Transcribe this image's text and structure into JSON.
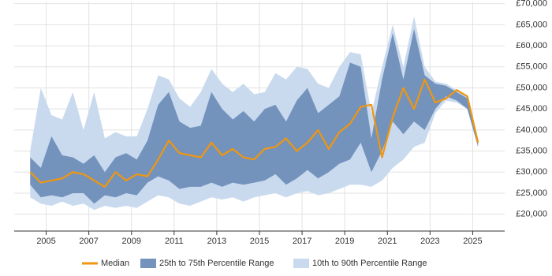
{
  "chart_data": {
    "type": "range-line",
    "x": [
      2004.25,
      2004.75,
      2005.25,
      2005.75,
      2006.25,
      2006.75,
      2007.25,
      2007.75,
      2008.25,
      2008.75,
      2009.25,
      2009.75,
      2010.25,
      2010.75,
      2011.25,
      2011.75,
      2012.25,
      2012.75,
      2013.25,
      2013.75,
      2014.25,
      2014.75,
      2015.25,
      2015.75,
      2016.25,
      2016.75,
      2017.25,
      2017.75,
      2018.25,
      2018.75,
      2019.25,
      2019.75,
      2020.25,
      2020.75,
      2021.25,
      2021.75,
      2022.25,
      2022.75,
      2023.25,
      2023.75,
      2024.25,
      2024.75,
      2025.25
    ],
    "series": [
      {
        "name": "Median",
        "color": "#f0960f",
        "values": [
          30000,
          27500,
          28000,
          28500,
          30000,
          29500,
          28000,
          26500,
          30000,
          28000,
          29500,
          29000,
          33000,
          37500,
          34500,
          34000,
          33500,
          37000,
          34000,
          35500,
          33500,
          33000,
          35500,
          36000,
          38000,
          35000,
          37000,
          40000,
          35500,
          39500,
          41500,
          45500,
          46000,
          33500,
          43000,
          50000,
          45000,
          52000,
          46500,
          47500,
          49500,
          48000,
          37000
        ]
      },
      {
        "name": "25th to 75th Percentile Range",
        "color": "#7393bd",
        "low": [
          27000,
          24000,
          24500,
          24000,
          25000,
          25000,
          22500,
          24500,
          24000,
          25000,
          24500,
          27500,
          29000,
          28000,
          26000,
          26500,
          26500,
          27500,
          26500,
          27500,
          27000,
          27500,
          28000,
          29500,
          27000,
          28500,
          30500,
          28500,
          30000,
          32000,
          33000,
          37000,
          30000,
          35000,
          42000,
          39000,
          42000,
          40000,
          45000,
          48000,
          47000,
          45000,
          36000
        ],
        "high": [
          33500,
          31000,
          38500,
          34000,
          33500,
          32000,
          34000,
          30000,
          33500,
          34500,
          33000,
          37500,
          46000,
          49000,
          42000,
          40500,
          41000,
          49000,
          45000,
          42500,
          44500,
          42000,
          45000,
          46000,
          42000,
          47000,
          50000,
          44000,
          46000,
          48000,
          56000,
          55000,
          38000,
          52000,
          63000,
          52000,
          64000,
          53000,
          51000,
          50500,
          49000,
          47500,
          37500
        ]
      },
      {
        "name": "10th to 90th Percentile Range",
        "color": "#c9daee",
        "low": [
          24000,
          22500,
          22000,
          23000,
          22000,
          22500,
          21000,
          22000,
          21500,
          22000,
          21500,
          23000,
          24500,
          24000,
          22500,
          22000,
          23000,
          24000,
          23500,
          24000,
          23000,
          24000,
          24500,
          25000,
          24000,
          25000,
          25500,
          24500,
          25000,
          26000,
          27000,
          27000,
          26500,
          28000,
          31000,
          33000,
          36000,
          37000,
          44000,
          47000,
          46500,
          45000,
          36000
        ],
        "high": [
          35000,
          50000,
          43500,
          42500,
          49000,
          40000,
          49000,
          38000,
          39500,
          38500,
          38500,
          45000,
          53000,
          52000,
          47500,
          45500,
          49000,
          54500,
          51000,
          49000,
          51000,
          48500,
          49000,
          53500,
          52000,
          55000,
          54500,
          51000,
          50000,
          55000,
          58500,
          58000,
          44000,
          55000,
          65000,
          55000,
          67000,
          55000,
          51500,
          51000,
          49500,
          48000,
          38000
        ]
      }
    ],
    "xlim": [
      2003.5,
      2026.5
    ],
    "xticks": [
      2005,
      2007,
      2009,
      2011,
      2013,
      2015,
      2017,
      2019,
      2021,
      2023,
      2025
    ],
    "ylim": [
      16000,
      70500
    ],
    "yticks": [
      {
        "value": 20000,
        "label": "£20,000"
      },
      {
        "value": 25000,
        "label": "£25,000"
      },
      {
        "value": 30000,
        "label": "£30,000"
      },
      {
        "value": 35000,
        "label": "£35,000"
      },
      {
        "value": 40000,
        "label": "£40,000"
      },
      {
        "value": 45000,
        "label": "£45,000"
      },
      {
        "value": 50000,
        "label": "£50,000"
      },
      {
        "value": 55000,
        "label": "£55,000"
      },
      {
        "value": 60000,
        "label": "£60,000"
      },
      {
        "value": 65000,
        "label": "£65,000"
      },
      {
        "value": 70000,
        "label": "£70,000"
      }
    ],
    "grid": true
  }
}
